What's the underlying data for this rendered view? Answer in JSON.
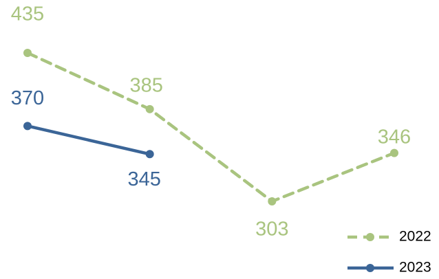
{
  "chart_data": {
    "type": "line",
    "categories": [
      null,
      null,
      null,
      null
    ],
    "series": [
      {
        "name": "2022",
        "color": "#a9c47f",
        "linestyle": "dashed",
        "values": [
          435,
          385,
          303,
          346
        ]
      },
      {
        "name": "2023",
        "color": "#3b6597",
        "linestyle": "solid",
        "values": [
          370,
          345,
          null,
          null
        ]
      }
    ],
    "data_labels": true,
    "legend": "lower right"
  }
}
